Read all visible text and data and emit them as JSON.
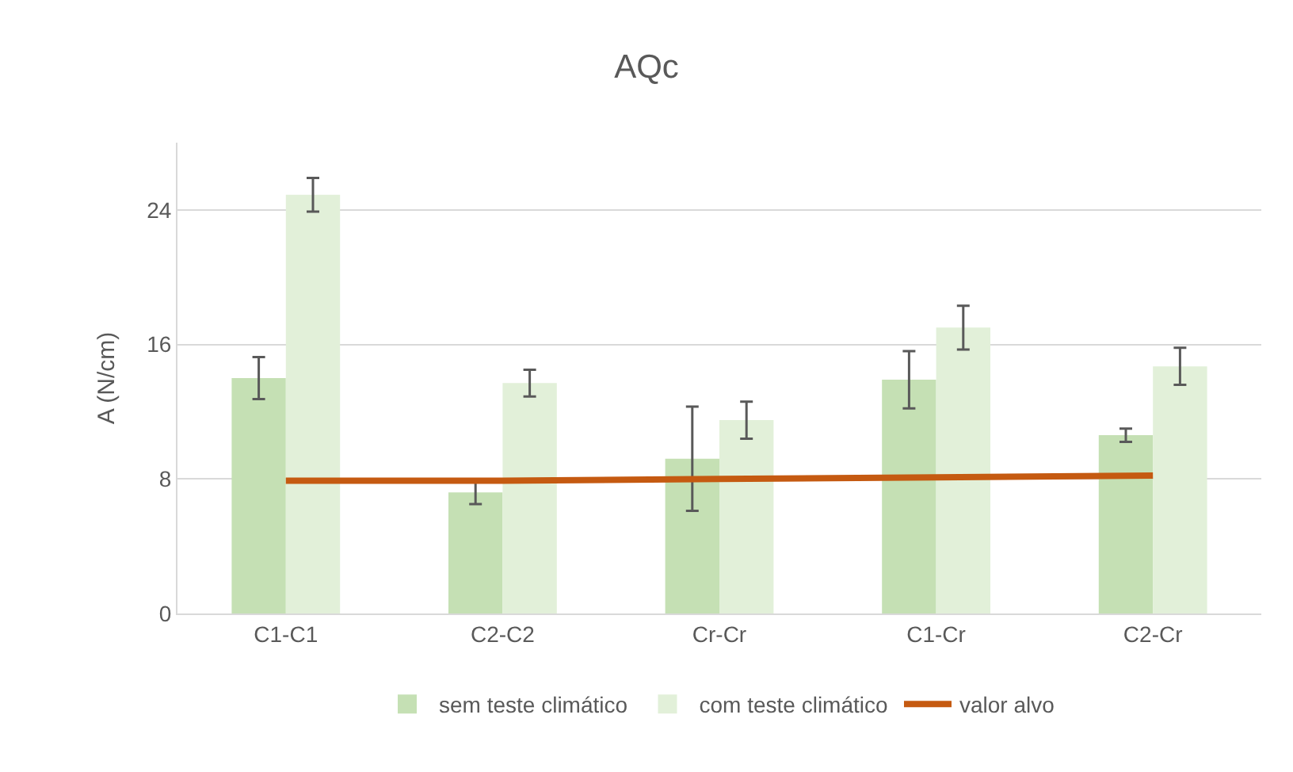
{
  "chart_data": {
    "type": "bar",
    "title": "AQc",
    "ylabel": "A (N/cm)",
    "categories": [
      "C1-C1",
      "C2-C2",
      "Cr-Cr",
      "C1-Cr",
      "C2-Cr"
    ],
    "series": [
      {
        "name": "sem teste climático",
        "color": "#c5e0b4",
        "values": [
          14.0,
          7.2,
          9.2,
          13.9,
          10.6
        ],
        "errors": [
          1.25,
          0.7,
          3.1,
          1.7,
          0.4
        ]
      },
      {
        "name": "com teste climático",
        "color": "#e2f0d9",
        "values": [
          24.9,
          13.7,
          11.5,
          17.0,
          14.7
        ],
        "errors": [
          1.0,
          0.8,
          1.1,
          1.3,
          1.1
        ]
      },
      {
        "name": "valor alvo",
        "type": "line",
        "color": "#c55a11",
        "values": [
          7.9,
          7.9,
          8.0,
          8.1,
          8.2
        ]
      }
    ],
    "ylim": [
      0,
      28
    ],
    "yticks": [
      0,
      8,
      16,
      24
    ],
    "grid": "y",
    "legend": "bottom",
    "marker": "none",
    "line_style": "solid"
  }
}
